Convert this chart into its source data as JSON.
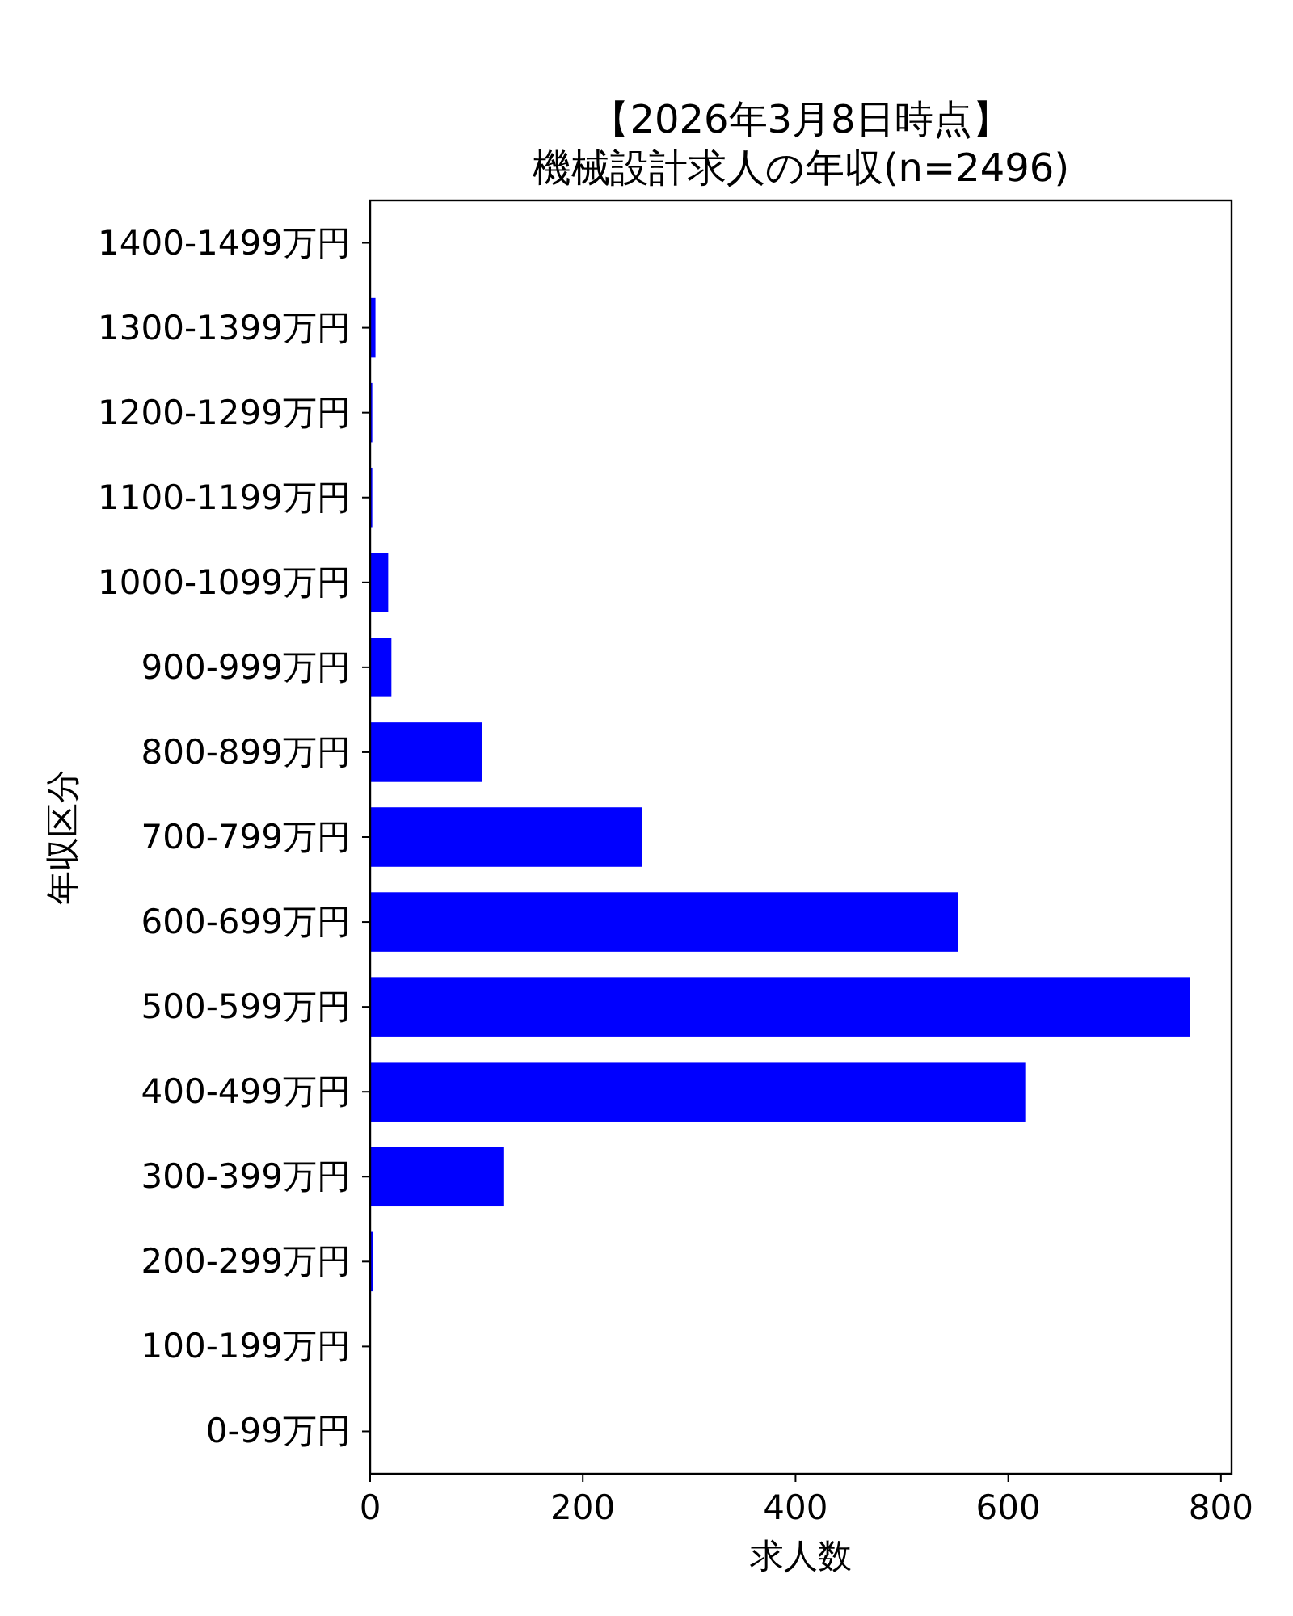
{
  "chart_data": {
    "type": "bar",
    "orientation": "horizontal",
    "title": "【2026年3月8日時点】",
    "subtitle": "機械設計求人の年収(n=2496)",
    "xlabel": "求人数",
    "ylabel": "年収区分",
    "categories": [
      "1400-1499万円",
      "1300-1399万円",
      "1200-1299万円",
      "1100-1199万円",
      "1000-1099万円",
      "900-999万円",
      "800-899万円",
      "700-799万円",
      "600-699万円",
      "500-599万円",
      "400-499万円",
      "300-399万円",
      "200-299万円",
      "100-199万円",
      "0-99万円"
    ],
    "values": [
      0,
      5,
      2,
      2,
      17,
      20,
      105,
      256,
      553,
      771,
      616,
      126,
      3,
      0,
      0
    ],
    "color": "#0000ff",
    "xlim": [
      0,
      810
    ],
    "xticks": [
      0,
      200,
      400,
      600,
      800
    ]
  }
}
